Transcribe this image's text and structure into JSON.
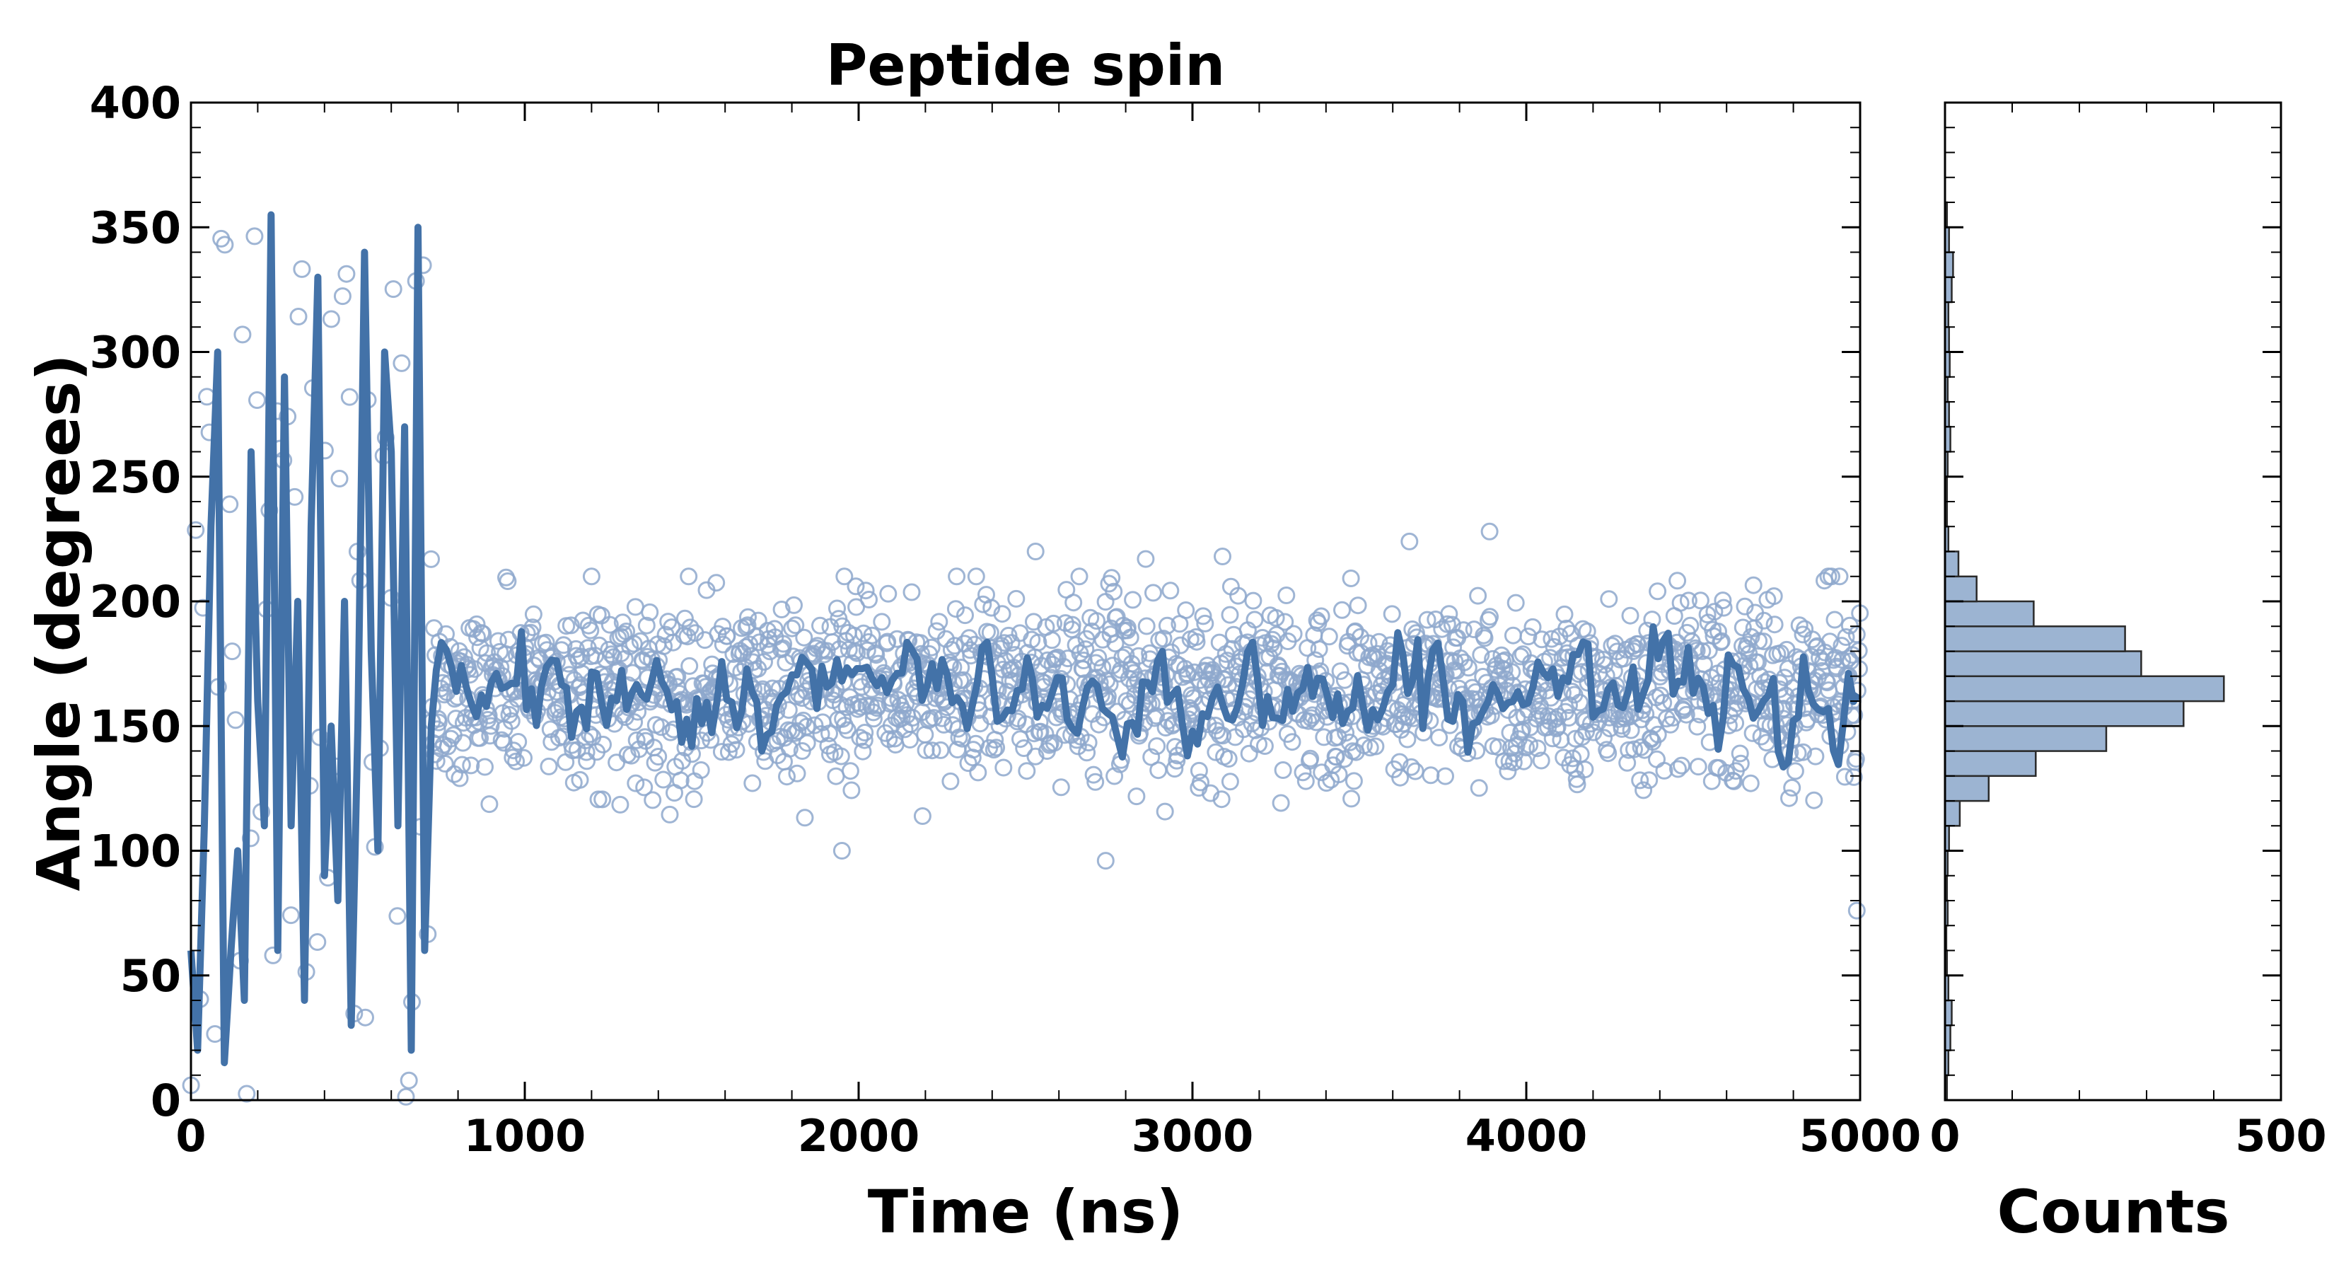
{
  "chart_data": {
    "type": "scatter",
    "title": "Peptide spin",
    "main_panel": {
      "xlabel": "Time (ns)",
      "ylabel": "Angle (degrees)",
      "xlim": [
        0,
        5000
      ],
      "ylim": [
        0,
        400
      ],
      "xticks": [
        0,
        1000,
        2000,
        3000,
        4000,
        5000
      ],
      "yticks": [
        0,
        50,
        100,
        150,
        200,
        250,
        300,
        350,
        400
      ],
      "series": [
        {
          "kind": "scatter",
          "marker": "open-circle",
          "color": "#8ea8cc",
          "description_of_distribution": {
            "early_regime": {
              "time_range": [
                0,
                720
              ],
              "angle_range": [
                0,
                360
              ]
            },
            "stable_regime": {
              "time_range": [
                720,
                5000
              ],
              "center": 165,
              "spread_range": [
                100,
                210
              ]
            }
          },
          "notable_points": [
            {
              "x": 4990,
              "y": 76
            },
            {
              "x": 2740,
              "y": 96
            },
            {
              "x": 1950,
              "y": 100
            },
            {
              "x": 3890,
              "y": 228
            },
            {
              "x": 3650,
              "y": 224
            },
            {
              "x": 1200,
              "y": 210
            },
            {
              "x": 2530,
              "y": 220
            },
            {
              "x": 3090,
              "y": 218
            },
            {
              "x": 2860,
              "y": 217
            }
          ]
        },
        {
          "kind": "line",
          "color": "#4372a8",
          "description_of_trace": {
            "early_regime": {
              "time_range": [
                0,
                720
              ],
              "angle_range": [
                10,
                360
              ]
            },
            "stable_regime": {
              "time_range": [
                720,
                5000
              ],
              "center": 163,
              "fluctuation": 15
            }
          },
          "early_points": [
            [
              0,
              60
            ],
            [
              20,
              20
            ],
            [
              40,
              110
            ],
            [
              60,
              230
            ],
            [
              80,
              300
            ],
            [
              100,
              15
            ],
            [
              120,
              60
            ],
            [
              140,
              100
            ],
            [
              160,
              40
            ],
            [
              180,
              260
            ],
            [
              200,
              160
            ],
            [
              220,
              110
            ],
            [
              240,
              355
            ],
            [
              260,
              60
            ],
            [
              280,
              290
            ],
            [
              300,
              110
            ],
            [
              320,
              200
            ],
            [
              340,
              40
            ],
            [
              360,
              230
            ],
            [
              380,
              330
            ],
            [
              400,
              90
            ],
            [
              420,
              150
            ],
            [
              440,
              80
            ],
            [
              460,
              200
            ],
            [
              480,
              30
            ],
            [
              500,
              150
            ],
            [
              520,
              340
            ],
            [
              540,
              180
            ],
            [
              560,
              100
            ],
            [
              580,
              300
            ],
            [
              600,
              260
            ],
            [
              620,
              110
            ],
            [
              640,
              270
            ],
            [
              660,
              20
            ],
            [
              680,
              350
            ],
            [
              700,
              60
            ],
            [
              720,
              150
            ]
          ]
        }
      ]
    },
    "histogram_panel": {
      "xlabel": "Counts",
      "xlim": [
        0,
        500
      ],
      "xticks": [
        0,
        500
      ],
      "ylim": [
        0,
        400
      ],
      "orientation": "horizontal",
      "bin_width": 10,
      "bar_color": "#9cb4d2",
      "bar_edge_color": "#2a2a2a",
      "bins": [
        {
          "y0": 0,
          "y1": 10,
          "count": 3
        },
        {
          "y0": 10,
          "y1": 20,
          "count": 5
        },
        {
          "y0": 20,
          "y1": 30,
          "count": 8
        },
        {
          "y0": 30,
          "y1": 40,
          "count": 10
        },
        {
          "y0": 40,
          "y1": 50,
          "count": 5
        },
        {
          "y0": 50,
          "y1": 60,
          "count": 3
        },
        {
          "y0": 60,
          "y1": 70,
          "count": 2
        },
        {
          "y0": 70,
          "y1": 80,
          "count": 4
        },
        {
          "y0": 80,
          "y1": 90,
          "count": 3
        },
        {
          "y0": 90,
          "y1": 100,
          "count": 4
        },
        {
          "y0": 100,
          "y1": 110,
          "count": 6
        },
        {
          "y0": 110,
          "y1": 120,
          "count": 22
        },
        {
          "y0": 120,
          "y1": 130,
          "count": 65
        },
        {
          "y0": 130,
          "y1": 140,
          "count": 135
        },
        {
          "y0": 140,
          "y1": 150,
          "count": 240
        },
        {
          "y0": 150,
          "y1": 160,
          "count": 355
        },
        {
          "y0": 160,
          "y1": 170,
          "count": 415
        },
        {
          "y0": 170,
          "y1": 180,
          "count": 292
        },
        {
          "y0": 180,
          "y1": 190,
          "count": 268
        },
        {
          "y0": 190,
          "y1": 200,
          "count": 132
        },
        {
          "y0": 200,
          "y1": 210,
          "count": 47
        },
        {
          "y0": 210,
          "y1": 220,
          "count": 20
        },
        {
          "y0": 220,
          "y1": 230,
          "count": 5
        },
        {
          "y0": 230,
          "y1": 240,
          "count": 3
        },
        {
          "y0": 240,
          "y1": 250,
          "count": 3
        },
        {
          "y0": 250,
          "y1": 260,
          "count": 4
        },
        {
          "y0": 260,
          "y1": 270,
          "count": 8
        },
        {
          "y0": 270,
          "y1": 280,
          "count": 6
        },
        {
          "y0": 280,
          "y1": 290,
          "count": 4
        },
        {
          "y0": 290,
          "y1": 300,
          "count": 7
        },
        {
          "y0": 300,
          "y1": 310,
          "count": 6
        },
        {
          "y0": 310,
          "y1": 320,
          "count": 5
        },
        {
          "y0": 320,
          "y1": 330,
          "count": 10
        },
        {
          "y0": 330,
          "y1": 340,
          "count": 12
        },
        {
          "y0": 340,
          "y1": 350,
          "count": 6
        },
        {
          "y0": 350,
          "y1": 360,
          "count": 3
        }
      ]
    }
  }
}
